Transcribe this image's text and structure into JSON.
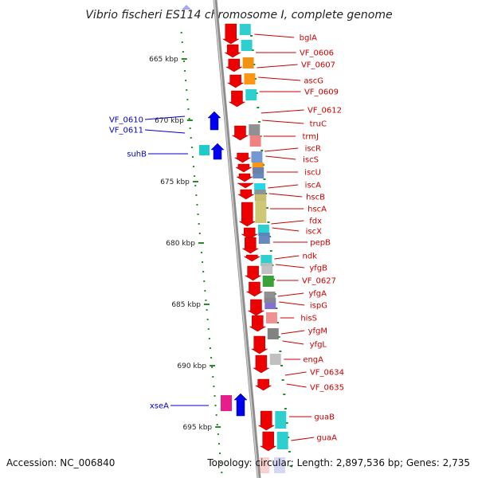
{
  "title": "Vibrio fischeri ES114 chromosome I, complete genome",
  "ticks": [
    {
      "label": "665 kbp",
      "kbp": 665
    },
    {
      "label": "670 kbp",
      "kbp": 670
    },
    {
      "label": "675 kbp",
      "kbp": 675
    },
    {
      "label": "680 kbp",
      "kbp": 680
    },
    {
      "label": "685 kbp",
      "kbp": 685
    },
    {
      "label": "690 kbp",
      "kbp": 690
    },
    {
      "label": "695 kbp",
      "kbp": 695
    }
  ],
  "genes_right": [
    "bglA",
    "VF_0606",
    "VF_0607",
    "ascG",
    "VF_0609",
    "VF_0612",
    "truC",
    "trmJ",
    "iscR",
    "iscS",
    "iscU",
    "iscA",
    "hscB",
    "hscA",
    "fdx",
    "iscX",
    "pepB",
    "ndk",
    "yfgB",
    "VF_0627",
    "yfgA",
    "ispG",
    "hisS",
    "yfgM",
    "yfgL",
    "engA",
    "VF_0634",
    "VF_0635",
    "guaB",
    "guaA"
  ],
  "genes_left": [
    "VF_0610",
    "VF_0611",
    "suhB",
    "xseA"
  ],
  "footer": {
    "accession": "Accession: NC_006840",
    "topology": "Topology: circular; Length: 2,897,536 bp; Genes: 2,735"
  },
  "colors": {
    "forward_gene": "#ee0000",
    "reverse_gene": "#0000ee",
    "right_label": "#cc0000",
    "left_label": "#0000cc",
    "backbone": "#999999",
    "tick_mark": "#2a8a2a"
  }
}
